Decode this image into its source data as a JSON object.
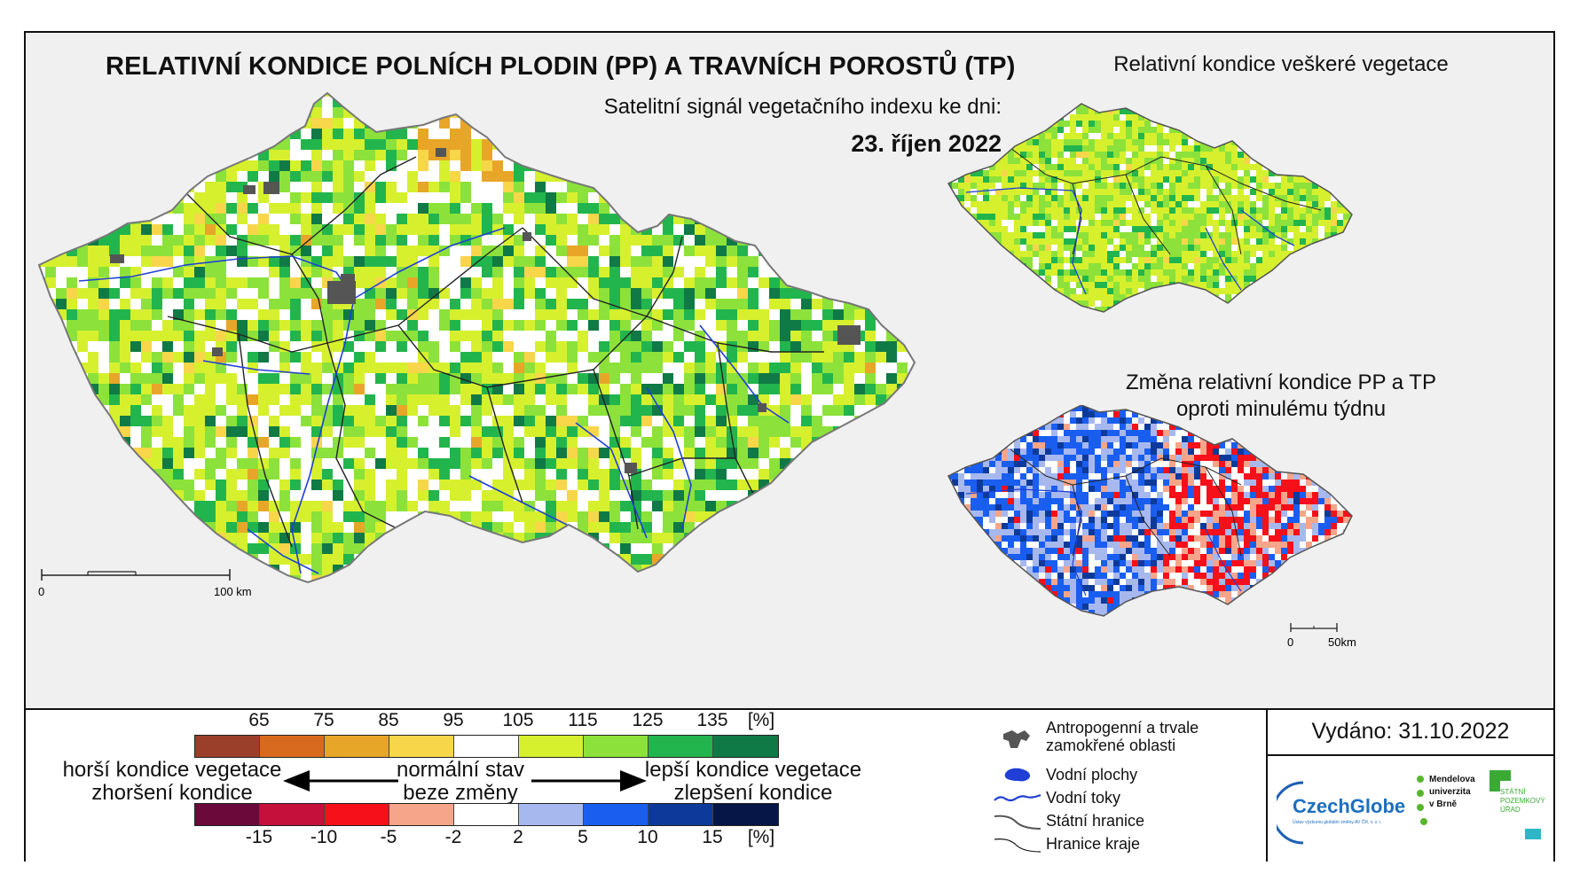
{
  "header": {
    "title": "RELATIVNÍ KONDICE POLNÍCH PLODIN (PP) A TRAVNÍCH POROSTŮ (TP)",
    "subtitle": "Satelitní signál vegetačního indexu ke dni:",
    "date": "23. říjen 2022"
  },
  "inset_top": {
    "title": "Relativní kondice veškeré vegetace"
  },
  "inset_bottom": {
    "title_line1": "Změna relativní kondice PP a TP",
    "title_line2": "oproti minulému týdnu"
  },
  "main_scale": {
    "start": "0",
    "end": "100 km"
  },
  "inset_scale": {
    "start": "0",
    "end": "50km"
  },
  "legend": {
    "condition_ticks": [
      "65",
      "75",
      "85",
      "95",
      "105",
      "115",
      "125",
      "135",
      "[%]"
    ],
    "condition_colors": [
      "#9b3f2b",
      "#d86a1f",
      "#e8a628",
      "#f7d64a",
      "#ffffff",
      "#d6f02e",
      "#8ce23a",
      "#22b54d",
      "#0f7a45"
    ],
    "change_ticks": [
      "-15",
      "-10",
      "-5",
      "-2",
      "2",
      "5",
      "10",
      "15",
      "[%]"
    ],
    "change_colors": [
      "#6b0a3a",
      "#c4103b",
      "#f5101a",
      "#f7a58a",
      "#ffffff",
      "#a7b8ef",
      "#1a5ef0",
      "#0d3a9a",
      "#061646"
    ],
    "left_line1": "horší kondice vegetace",
    "left_line2": "zhoršení kondice",
    "center_line1": "normální stav",
    "center_line2": "beze změny",
    "right_line1": "lepší kondice vegetace",
    "right_line2": "zlepšení kondice"
  },
  "symbols": {
    "anthropogenic_line1": "Antropogenní a trvale",
    "anthropogenic_line2": "zamokřené oblasti",
    "water_bodies": "Vodní plochy",
    "water_streams": "Vodní toky",
    "state_border": "Státní hranice",
    "region_border": "Hranice kraje"
  },
  "issued": "Vydáno: 31.10.2022",
  "logos": {
    "czechglobe": "CzechGlobe",
    "czechglobe_sub": "Ústav výzkumu globální změny AV ČR, v. v. i.",
    "mendel_1": "Mendelova",
    "mendel_2": "univerzita",
    "mendel_3": "v Brně",
    "spu_1": "STÁTNÍ",
    "spu_2": "POZEMKOVÝ",
    "spu_3": "ÚŘAD"
  },
  "colors": {
    "water": "#1f3fd6",
    "anthropogenic": "#555555",
    "pixel_palette_condition": [
      "#ffffff",
      "#d6f02e",
      "#8ce23a",
      "#22b54d",
      "#0f7a45",
      "#f7d64a",
      "#e8a628"
    ],
    "pixel_palette_veg": [
      "#d6f02e",
      "#8ce23a",
      "#22b54d",
      "#ffffff",
      "#f7d64a"
    ],
    "pixel_palette_change": [
      "#1a5ef0",
      "#a7b8ef",
      "#0d3a9a",
      "#ffffff",
      "#f7a58a",
      "#f5101a"
    ]
  }
}
